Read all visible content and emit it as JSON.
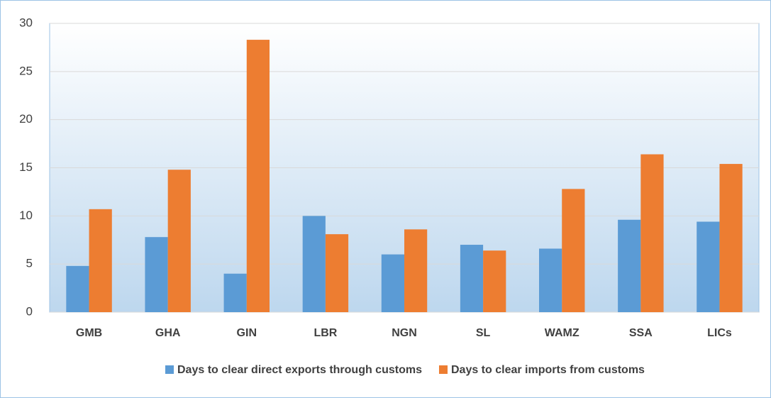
{
  "chart_data": {
    "type": "bar",
    "categories": [
      "GMB",
      "GHA",
      "GIN",
      "LBR",
      "NGN",
      "SL",
      "WAMZ",
      "SSA",
      "LICs"
    ],
    "series": [
      {
        "name": "Days to clear direct exports through customs",
        "color": "#5b9bd5",
        "values": [
          4.8,
          7.8,
          4.0,
          10.0,
          6.0,
          7.0,
          6.6,
          9.6,
          9.4
        ]
      },
      {
        "name": "Days to clear imports from customs",
        "color": "#ed7d31",
        "values": [
          10.7,
          14.8,
          28.3,
          8.1,
          8.6,
          6.4,
          12.8,
          16.4,
          15.4
        ]
      }
    ],
    "ylim": [
      0,
      30
    ],
    "yticks": [
      0,
      5,
      10,
      15,
      20,
      25,
      30
    ],
    "grid": true,
    "legend": "bottom"
  }
}
